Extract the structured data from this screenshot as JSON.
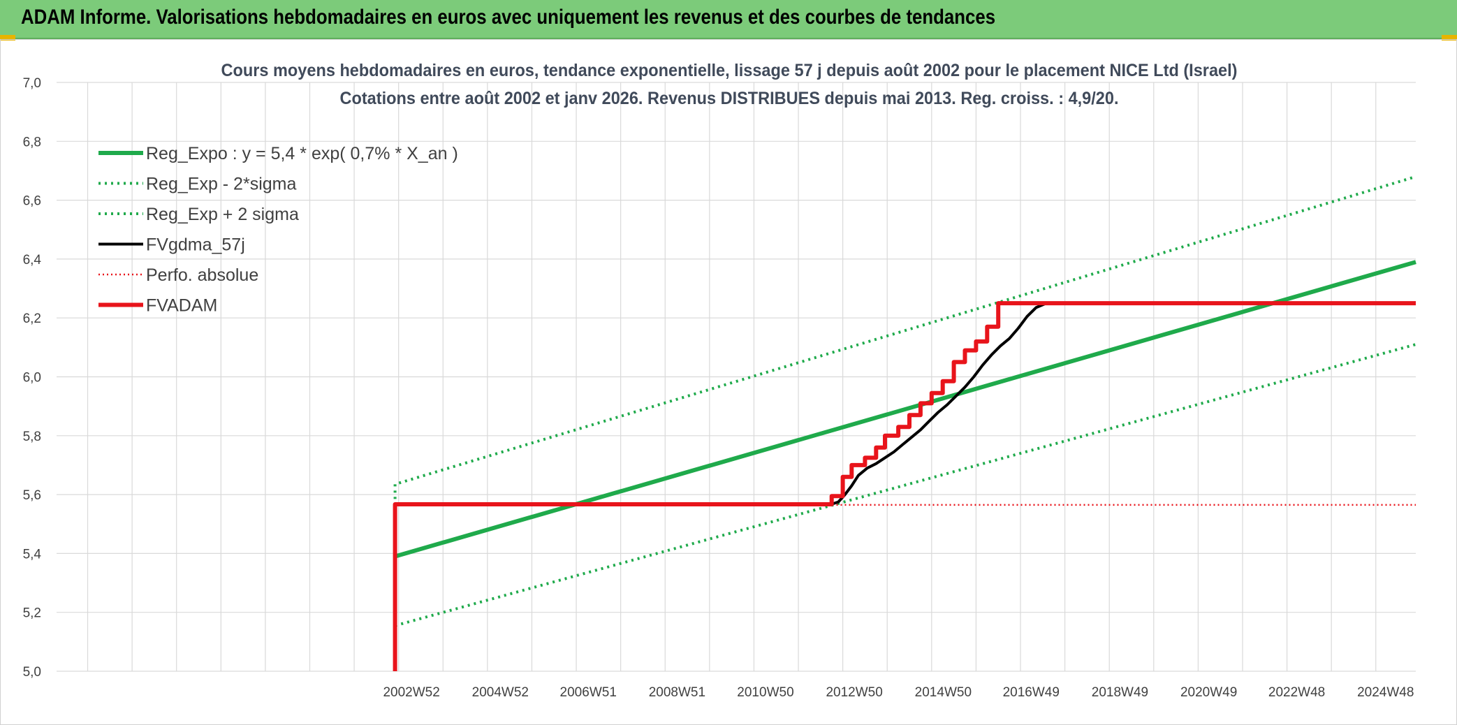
{
  "header": {
    "title": "ADAM Informe. Valorisations hebdomadaires en euros avec uniquement les revenus et des courbes de tendances"
  },
  "colors": {
    "banner": "#7ccb7a",
    "trend_green": "#1faa4b",
    "fv_black": "#000000",
    "adam_red": "#e8141b",
    "grid": "#d9d9d9"
  },
  "chart_data": {
    "type": "line",
    "title": [
      "Cours moyens hebdomadaires en euros, tendance exponentielle, lissage 57 j depuis août 2002 pour le placement NICE Ltd (Israel)",
      "Cotations entre août 2002 et janv 2026. Revenus DISTRIBUES depuis mai 2013. Reg. croiss. : 4,9/20."
    ],
    "xlabel": "",
    "ylabel": "",
    "ylim": [
      5.0,
      7.0
    ],
    "xlim": [
      1995.0,
      2025.6
    ],
    "y_ticks": [
      "7,0",
      "6,8",
      "6,6",
      "6,4",
      "6,2",
      "6,0",
      "5,8",
      "5,6",
      "5,4",
      "5,2",
      "5,0"
    ],
    "x_ticks": [
      {
        "label": "2002W52",
        "x": 2002.99
      },
      {
        "label": "2004W52",
        "x": 2004.99
      },
      {
        "label": "2006W51",
        "x": 2006.97
      },
      {
        "label": "2008W51",
        "x": 2008.97
      },
      {
        "label": "2010W50",
        "x": 2010.96
      },
      {
        "label": "2012W50",
        "x": 2012.96
      },
      {
        "label": "2014W50",
        "x": 2014.96
      },
      {
        "label": "2016W49",
        "x": 2016.94
      },
      {
        "label": "2018W49",
        "x": 2018.94
      },
      {
        "label": "2020W49",
        "x": 2020.94
      },
      {
        "label": "2022W48",
        "x": 2022.92
      },
      {
        "label": "2024W48",
        "x": 2024.92
      }
    ],
    "grid": true,
    "legend_position": "top-left",
    "series": [
      {
        "name": "Reg_Expo : y = 5,4 * exp( 0,7% *  X_an )",
        "style": "solid-thick",
        "color": "#1faa4b",
        "points": [
          [
            2002.62,
            5.39
          ],
          [
            2025.6,
            6.39
          ]
        ]
      },
      {
        "name": "Reg_Exp - 2*sigma",
        "style": "dotted",
        "color": "#1faa4b",
        "points": [
          [
            2002.62,
            5.155
          ],
          [
            2025.6,
            6.11
          ]
        ]
      },
      {
        "name": "Reg_Exp + 2 sigma",
        "style": "dotted",
        "color": "#1faa4b",
        "points": [
          [
            2002.62,
            5.585
          ],
          [
            2002.62,
            5.635
          ],
          [
            2025.6,
            6.68
          ]
        ]
      },
      {
        "name": "FVgdma_57j",
        "style": "solid",
        "color": "#000000",
        "points": [
          [
            2002.62,
            5.0
          ],
          [
            2002.62,
            5.565
          ],
          [
            2012.4,
            5.565
          ],
          [
            2012.6,
            5.575
          ],
          [
            2012.75,
            5.6
          ],
          [
            2012.9,
            5.63
          ],
          [
            2013.05,
            5.665
          ],
          [
            2013.25,
            5.69
          ],
          [
            2013.45,
            5.705
          ],
          [
            2013.65,
            5.725
          ],
          [
            2013.85,
            5.745
          ],
          [
            2014.05,
            5.77
          ],
          [
            2014.25,
            5.795
          ],
          [
            2014.45,
            5.82
          ],
          [
            2014.65,
            5.85
          ],
          [
            2014.85,
            5.88
          ],
          [
            2015.05,
            5.905
          ],
          [
            2015.25,
            5.935
          ],
          [
            2015.45,
            5.965
          ],
          [
            2015.65,
            6.0
          ],
          [
            2015.85,
            6.04
          ],
          [
            2016.05,
            6.075
          ],
          [
            2016.25,
            6.105
          ],
          [
            2016.45,
            6.13
          ],
          [
            2016.65,
            6.165
          ],
          [
            2016.85,
            6.205
          ],
          [
            2017.05,
            6.235
          ],
          [
            2017.25,
            6.248
          ],
          [
            2017.7,
            6.25
          ]
        ]
      },
      {
        "name": "Perfo. absolue",
        "style": "dotted-thin",
        "color": "#e8141b",
        "points": [
          [
            2002.62,
            5.0
          ],
          [
            2002.62,
            5.565
          ],
          [
            2025.6,
            5.565
          ]
        ]
      },
      {
        "name": "FVADAM",
        "style": "solid-thick",
        "color": "#e8141b",
        "points": [
          [
            2002.62,
            5.0
          ],
          [
            2002.62,
            5.567
          ],
          [
            2012.45,
            5.567
          ],
          [
            2012.45,
            5.595
          ],
          [
            2012.7,
            5.595
          ],
          [
            2012.7,
            5.66
          ],
          [
            2012.9,
            5.66
          ],
          [
            2012.9,
            5.7
          ],
          [
            2013.2,
            5.7
          ],
          [
            2013.2,
            5.725
          ],
          [
            2013.45,
            5.725
          ],
          [
            2013.45,
            5.76
          ],
          [
            2013.65,
            5.76
          ],
          [
            2013.65,
            5.8
          ],
          [
            2013.95,
            5.8
          ],
          [
            2013.95,
            5.83
          ],
          [
            2014.2,
            5.83
          ],
          [
            2014.2,
            5.87
          ],
          [
            2014.45,
            5.87
          ],
          [
            2014.45,
            5.91
          ],
          [
            2014.7,
            5.91
          ],
          [
            2014.7,
            5.945
          ],
          [
            2014.95,
            5.945
          ],
          [
            2014.95,
            5.985
          ],
          [
            2015.2,
            5.985
          ],
          [
            2015.2,
            6.05
          ],
          [
            2015.45,
            6.05
          ],
          [
            2015.45,
            6.09
          ],
          [
            2015.7,
            6.09
          ],
          [
            2015.7,
            6.12
          ],
          [
            2015.95,
            6.12
          ],
          [
            2015.95,
            6.17
          ],
          [
            2016.2,
            6.17
          ],
          [
            2016.2,
            6.25
          ],
          [
            2025.6,
            6.25
          ]
        ]
      }
    ]
  }
}
